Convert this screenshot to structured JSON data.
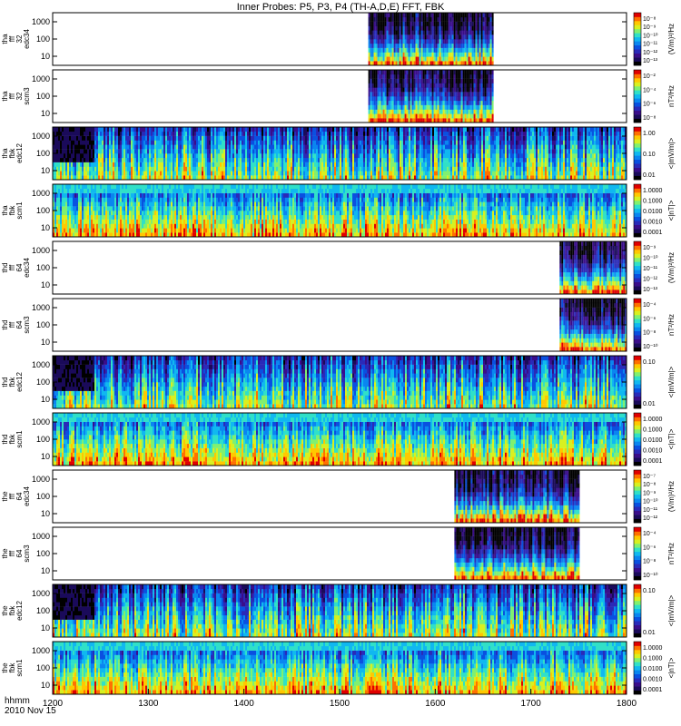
{
  "chart_data": {
    "type": "heatmap",
    "title": "Inner Probes: P5, P3, P4 (TH-A,D,E) FFT, FBK",
    "time_axis": {
      "range": [
        1200,
        1800
      ],
      "ticks": [
        "1200",
        "1300",
        "1400",
        "1500",
        "1600",
        "1700",
        "1800"
      ],
      "label_line1": "hhmm",
      "label_line2": "2010 Nov 15"
    },
    "panels": [
      {
        "ylabel": [
          "tha",
          "fff",
          "32",
          "edc34"
        ],
        "yticks": [
          "1000",
          "100",
          "10"
        ],
        "cbar_label": "(V/m)²/Hz",
        "cbar_ticks": [
          "10⁻⁸",
          "10⁻⁹",
          "10⁻¹⁰",
          "10⁻¹¹",
          "10⁻¹²",
          "10⁻¹³"
        ],
        "coverage": [
          1530,
          1660
        ],
        "kind": "fff"
      },
      {
        "ylabel": [
          "tha",
          "fff",
          "32",
          "scm3"
        ],
        "yticks": [
          "1000",
          "100",
          "10"
        ],
        "cbar_label": "nT²/Hz",
        "cbar_ticks": [
          "10⁻²",
          "10⁻⁴",
          "10⁻⁶",
          "10⁻⁸"
        ],
        "coverage": [
          1530,
          1660
        ],
        "kind": "fff"
      },
      {
        "ylabel": [
          "tha",
          "fbk",
          "edc12"
        ],
        "yticks": [
          "1000",
          "100",
          "10"
        ],
        "cbar_label": "<|mV/m|>",
        "cbar_ticks": [
          "1.00",
          "0.10",
          "0.01"
        ],
        "coverage": [
          1200,
          1800
        ],
        "kind": "fbk_e"
      },
      {
        "ylabel": [
          "tha",
          "fbk",
          "scm1"
        ],
        "yticks": [
          "1000",
          "100",
          "10"
        ],
        "cbar_label": "<|nT|>",
        "cbar_ticks": [
          "1.0000",
          "0.1000",
          "0.0100",
          "0.0010",
          "0.0001"
        ],
        "coverage": [
          1200,
          1800
        ],
        "kind": "fbk_b"
      },
      {
        "ylabel": [
          "thd",
          "fff",
          "64",
          "edc34"
        ],
        "yticks": [
          "1000",
          "100",
          "10"
        ],
        "cbar_label": "(V/m)²/Hz",
        "cbar_ticks": [
          "10⁻⁹",
          "10⁻¹⁰",
          "10⁻¹¹",
          "10⁻¹²",
          "10⁻¹³"
        ],
        "coverage": [
          1730,
          1800
        ],
        "kind": "fff"
      },
      {
        "ylabel": [
          "thd",
          "fff",
          "64",
          "scm3"
        ],
        "yticks": [
          "1000",
          "100",
          "10"
        ],
        "cbar_label": "nT²/Hz",
        "cbar_ticks": [
          "10⁻⁴",
          "10⁻⁶",
          "10⁻⁸",
          "10⁻¹⁰"
        ],
        "coverage": [
          1730,
          1800
        ],
        "kind": "fff"
      },
      {
        "ylabel": [
          "thd",
          "fbk",
          "edc12"
        ],
        "yticks": [
          "1000",
          "100",
          "10"
        ],
        "cbar_label": "<|mV/m|>",
        "cbar_ticks": [
          "0.10",
          "0.01"
        ],
        "coverage": [
          1200,
          1800
        ],
        "kind": "fbk_e"
      },
      {
        "ylabel": [
          "thd",
          "fbk",
          "scm1"
        ],
        "yticks": [
          "1000",
          "100",
          "10"
        ],
        "cbar_label": "<|nT|>",
        "cbar_ticks": [
          "1.0000",
          "0.1000",
          "0.0100",
          "0.0010",
          "0.0001"
        ],
        "coverage": [
          1200,
          1800
        ],
        "kind": "fbk_b"
      },
      {
        "ylabel": [
          "the",
          "fff",
          "64",
          "edc34"
        ],
        "yticks": [
          "1000",
          "100",
          "10"
        ],
        "cbar_label": "(V/m)²/Hz",
        "cbar_ticks": [
          "10⁻⁷",
          "10⁻⁸",
          "10⁻⁹",
          "10⁻¹⁰",
          "10⁻¹¹",
          "10⁻¹²"
        ],
        "coverage": [
          1620,
          1750
        ],
        "kind": "fff"
      },
      {
        "ylabel": [
          "the",
          "fff",
          "64",
          "scm3"
        ],
        "yticks": [
          "1000",
          "100",
          "10"
        ],
        "cbar_label": "nT²/Hz",
        "cbar_ticks": [
          "10⁻⁴",
          "10⁻⁶",
          "10⁻⁸",
          "10⁻¹⁰"
        ],
        "coverage": [
          1620,
          1750
        ],
        "kind": "fff"
      },
      {
        "ylabel": [
          "the",
          "fbk",
          "edc12"
        ],
        "yticks": [
          "1000",
          "100",
          "10"
        ],
        "cbar_label": "<|mV/m|>",
        "cbar_ticks": [
          "0.10",
          "0.01"
        ],
        "coverage": [
          1200,
          1800
        ],
        "kind": "fbk_e"
      },
      {
        "ylabel": [
          "the",
          "fbk",
          "scm1"
        ],
        "yticks": [
          "1000",
          "100",
          "10"
        ],
        "cbar_label": "<|nT|>",
        "cbar_ticks": [
          "1.0000",
          "0.1000",
          "0.0100",
          "0.0010",
          "0.0001"
        ],
        "coverage": [
          1200,
          1800
        ],
        "kind": "fbk_b"
      }
    ],
    "colormap": [
      "#000000",
      "#1a0a5a",
      "#3a0d8a",
      "#2a2ab8",
      "#0a50e0",
      "#0a86f0",
      "#10b8f0",
      "#30e0c8",
      "#80f070",
      "#d8f020",
      "#ffc800",
      "#ff7000",
      "#e00000"
    ]
  }
}
